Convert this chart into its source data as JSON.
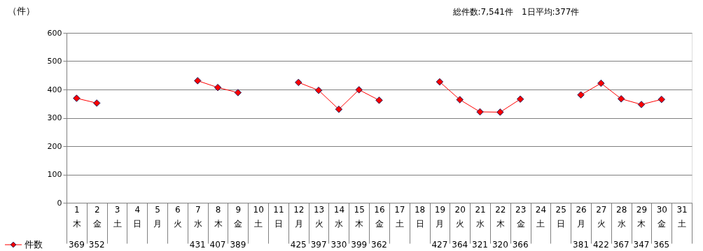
{
  "chart_data": {
    "type": "line",
    "title": "総件数:7,541件　1日平均:377件",
    "ylabel": "（件）",
    "categories": [
      "1 木",
      "2 金",
      "3 土",
      "4 日",
      "5 月",
      "6 火",
      "7 水",
      "8 木",
      "9 金",
      "10 土",
      "11 日",
      "12 月",
      "13 火",
      "14 水",
      "15 木",
      "16 金",
      "17 土",
      "18 日",
      "19 月",
      "20 火",
      "21 水",
      "22 木",
      "23 金",
      "24 土",
      "25 日",
      "26 月",
      "27 火",
      "28 水",
      "29 木",
      "30 金",
      "31 土"
    ],
    "series": [
      {
        "name": "件数",
        "color": "#ff0000",
        "values": [
          369,
          352,
          null,
          null,
          null,
          null,
          431,
          407,
          389,
          null,
          null,
          425,
          397,
          330,
          399,
          362,
          null,
          null,
          427,
          364,
          321,
          320,
          366,
          null,
          null,
          381,
          422,
          367,
          347,
          365,
          null
        ]
      }
    ],
    "ylim": [
      0,
      600
    ],
    "yticks": [
      0,
      100,
      200,
      300,
      400,
      500,
      600
    ],
    "grid": "y",
    "marker": "diamond",
    "line_style": "solid",
    "legend": "bottom left",
    "data_labels": true
  }
}
